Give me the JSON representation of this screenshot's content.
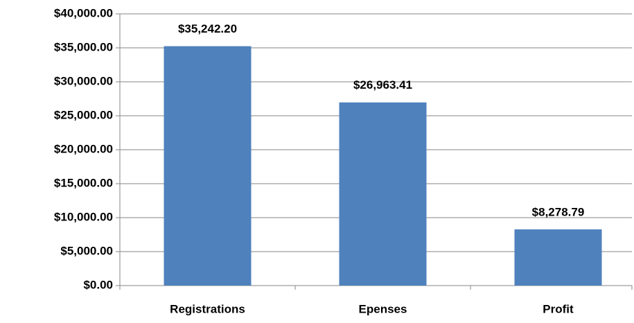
{
  "chart_data": {
    "type": "bar",
    "categories": [
      "Registrations",
      "Epenses",
      "Profit"
    ],
    "values": [
      35242.2,
      26963.41,
      8278.79
    ],
    "value_labels": [
      "$35,242.20",
      "$26,963.41",
      "$8,278.79"
    ],
    "color": "#4f81bd",
    "ylim": [
      0,
      40000
    ],
    "yticks": [
      {
        "value": 0,
        "label": "$0.00"
      },
      {
        "value": 5000,
        "label": "$5,000.00"
      },
      {
        "value": 10000,
        "label": "$10,000.00"
      },
      {
        "value": 15000,
        "label": "$15,000.00"
      },
      {
        "value": 20000,
        "label": "$20,000.00"
      },
      {
        "value": 25000,
        "label": "$25,000.00"
      },
      {
        "value": 30000,
        "label": "$30,000.00"
      },
      {
        "value": 35000,
        "label": "$35,000.00"
      },
      {
        "value": 40000,
        "label": "$40,000.00"
      }
    ],
    "grid": true
  }
}
